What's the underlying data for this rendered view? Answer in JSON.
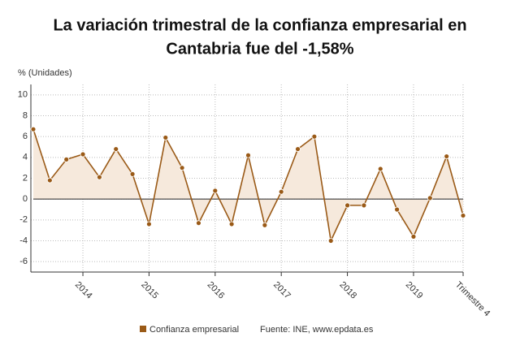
{
  "chart_data": {
    "type": "line",
    "title": [
      "La variación trimestral de la confianza empresarial en",
      "Cantabria fue del -1,58%"
    ],
    "y_label": "% (Unidades)",
    "categories": [
      null,
      null,
      null,
      "2014",
      null,
      null,
      null,
      "2015",
      null,
      null,
      null,
      "2016",
      null,
      null,
      null,
      "2017",
      null,
      null,
      null,
      "2018",
      null,
      null,
      null,
      "2019",
      null,
      null,
      "Trimestre 4"
    ],
    "series": [
      {
        "name": "Confianza empresarial",
        "color": "#9a5a17",
        "values": [
          6.7,
          1.8,
          3.8,
          4.3,
          2.1,
          4.8,
          2.4,
          -2.4,
          5.9,
          3.0,
          -2.3,
          0.8,
          -2.4,
          4.2,
          -2.5,
          0.7,
          4.8,
          6.0,
          -4.0,
          -0.6,
          -0.6,
          2.9,
          -1.0,
          -3.6,
          0.1,
          4.1,
          -1.58
        ]
      }
    ],
    "area_color": "#f6e9dc",
    "ylim": [
      -7,
      11
    ],
    "yticks": [
      -6,
      -4,
      -2,
      0,
      2,
      4,
      6,
      8,
      10
    ],
    "grid": true,
    "source": "Fuente: INE, www.epdata.es"
  }
}
